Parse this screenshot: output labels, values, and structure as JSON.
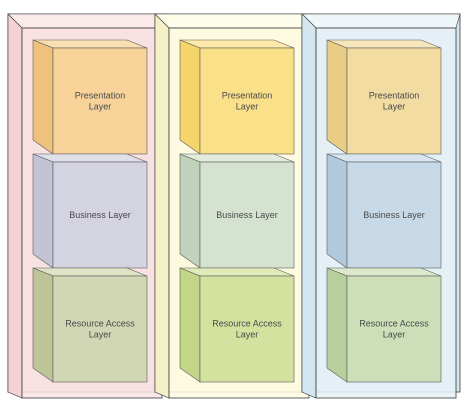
{
  "columns": [
    {
      "id": "left",
      "colors": {
        "panel_front": "#f9e4e4",
        "panel_side": "#f2d2d2",
        "panel_top": "#fbeaea",
        "panel_stroke": "#3a3a3a"
      },
      "layers": [
        {
          "lines": [
            "Presentation",
            "Layer"
          ],
          "front": "#f7d39a",
          "side": "#efc27b",
          "top": "#fadfb2"
        },
        {
          "lines": [
            "Business Layer"
          ],
          "front": "#d4d4e0",
          "side": "#c2c3d5",
          "top": "#e0e0ea"
        },
        {
          "lines": [
            "Resource Access",
            "Layer"
          ],
          "front": "#d1d7b4",
          "side": "#bcc498",
          "top": "#dfe4c6"
        }
      ]
    },
    {
      "id": "middle",
      "colors": {
        "panel_front": "#fefce4",
        "panel_side": "#f4f1c6",
        "panel_top": "#fefdea",
        "panel_stroke": "#3a3a3a"
      },
      "layers": [
        {
          "lines": [
            "Presentation",
            "Layer"
          ],
          "front": "#fbe08a",
          "side": "#f6d46c",
          "top": "#fdeaa8"
        },
        {
          "lines": [
            "Business Layer"
          ],
          "front": "#d5e2cf",
          "side": "#c0d2ba",
          "top": "#e2ecdd"
        },
        {
          "lines": [
            "Resource Access",
            "Layer"
          ],
          "front": "#d4e2a0",
          "side": "#c3d586",
          "top": "#e0ebb8"
        }
      ]
    },
    {
      "id": "right",
      "colors": {
        "panel_front": "#e6f1f7",
        "panel_side": "#d4e6f0",
        "panel_top": "#eef6fa",
        "panel_stroke": "#3a3a3a"
      },
      "layers": [
        {
          "lines": [
            "Presentation",
            "Layer"
          ],
          "front": "#f2dca2",
          "side": "#e9cd84",
          "top": "#f7e6bc"
        },
        {
          "lines": [
            "Business Layer"
          ],
          "front": "#c7d9e6",
          "side": "#b2cadc",
          "top": "#d8e5ef"
        },
        {
          "lines": [
            "Resource Access",
            "Layer"
          ],
          "front": "#cddfb8",
          "side": "#b6cf9c",
          "top": "#dbe8cb"
        }
      ]
    }
  ]
}
